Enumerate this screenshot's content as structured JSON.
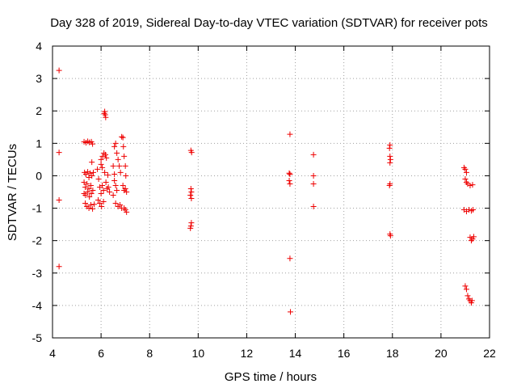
{
  "chart_data": {
    "type": "scatter",
    "title": "Day 328 of 2019, Sidereal Day-to-day VTEC variation (SDTVAR) for receiver pots",
    "xlabel": "GPS time / hours",
    "ylabel": "SDTVAR / TECUs",
    "xlim": [
      4,
      22
    ],
    "ylim": [
      -5,
      4
    ],
    "xticks": [
      4,
      6,
      8,
      10,
      12,
      14,
      16,
      18,
      20,
      22
    ],
    "yticks": [
      -5,
      -4,
      -3,
      -2,
      -1,
      0,
      1,
      2,
      3,
      4
    ],
    "grid": true,
    "marker": "+",
    "color": "#ee0000",
    "series": [
      {
        "name": "pots",
        "points": [
          [
            4.27,
            3.25
          ],
          [
            4.27,
            0.72
          ],
          [
            4.27,
            -0.75
          ],
          [
            4.27,
            -2.8
          ],
          [
            6.15,
            1.98
          ],
          [
            6.17,
            1.88
          ],
          [
            6.19,
            1.8
          ],
          [
            6.13,
            1.92
          ],
          [
            5.3,
            1.05
          ],
          [
            5.38,
            1.02
          ],
          [
            5.45,
            1.06
          ],
          [
            5.52,
            1.03
          ],
          [
            5.6,
            1.05
          ],
          [
            5.65,
            0.98
          ],
          [
            5.32,
            0.1
          ],
          [
            5.38,
            0.05
          ],
          [
            5.45,
            0.12
          ],
          [
            5.5,
            -0.05
          ],
          [
            5.55,
            0.08
          ],
          [
            5.62,
            0.0
          ],
          [
            5.68,
            0.1
          ],
          [
            5.3,
            -0.2
          ],
          [
            5.35,
            -0.35
          ],
          [
            5.42,
            -0.25
          ],
          [
            5.5,
            -0.4
          ],
          [
            5.58,
            -0.3
          ],
          [
            5.66,
            -0.45
          ],
          [
            5.3,
            -0.55
          ],
          [
            5.36,
            -0.6
          ],
          [
            5.44,
            -0.5
          ],
          [
            5.52,
            -0.65
          ],
          [
            5.6,
            -0.55
          ],
          [
            5.35,
            -0.85
          ],
          [
            5.42,
            -0.95
          ],
          [
            5.5,
            -1.0
          ],
          [
            5.58,
            -0.9
          ],
          [
            5.65,
            -1.02
          ],
          [
            5.72,
            -0.88
          ],
          [
            5.62,
            0.42
          ],
          [
            5.85,
            0.2
          ],
          [
            5.9,
            -0.1
          ],
          [
            5.95,
            -0.35
          ],
          [
            6.0,
            -0.55
          ],
          [
            6.05,
            -0.3
          ],
          [
            6.1,
            -0.45
          ],
          [
            5.88,
            -0.75
          ],
          [
            5.95,
            -0.85
          ],
          [
            6.02,
            -0.95
          ],
          [
            6.1,
            -0.8
          ],
          [
            6.0,
            0.5
          ],
          [
            6.06,
            0.6
          ],
          [
            6.12,
            0.7
          ],
          [
            6.18,
            0.65
          ],
          [
            6.22,
            0.55
          ],
          [
            6.0,
            0.35
          ],
          [
            6.05,
            0.25
          ],
          [
            6.15,
            0.1
          ],
          [
            6.2,
            -0.2
          ],
          [
            6.25,
            -0.4
          ],
          [
            6.3,
            -0.35
          ],
          [
            6.28,
            0.02
          ],
          [
            6.35,
            -0.5
          ],
          [
            6.5,
            0.3
          ],
          [
            6.55,
            0.05
          ],
          [
            6.55,
            -0.15
          ],
          [
            6.6,
            -0.3
          ],
          [
            6.65,
            -0.45
          ],
          [
            6.5,
            -0.6
          ],
          [
            6.55,
            0.9
          ],
          [
            6.6,
            1.0
          ],
          [
            6.65,
            0.7
          ],
          [
            6.7,
            0.5
          ],
          [
            6.75,
            0.3
          ],
          [
            6.8,
            0.1
          ],
          [
            6.6,
            -0.85
          ],
          [
            6.7,
            -0.95
          ],
          [
            6.78,
            -0.9
          ],
          [
            6.85,
            -1.0
          ],
          [
            6.85,
            1.2
          ],
          [
            6.9,
            1.18
          ],
          [
            6.92,
            0.9
          ],
          [
            6.95,
            0.6
          ],
          [
            7.0,
            0.3
          ],
          [
            7.02,
            0.0
          ],
          [
            6.9,
            -0.3
          ],
          [
            6.95,
            -0.45
          ],
          [
            7.0,
            -0.4
          ],
          [
            7.05,
            -0.5
          ],
          [
            6.95,
            -1.0
          ],
          [
            7.0,
            -1.05
          ],
          [
            7.05,
            -1.12
          ],
          [
            9.7,
            0.78
          ],
          [
            9.73,
            0.72
          ],
          [
            9.7,
            -0.4
          ],
          [
            9.72,
            -0.5
          ],
          [
            9.68,
            -0.6
          ],
          [
            9.72,
            -0.7
          ],
          [
            9.72,
            -1.45
          ],
          [
            9.7,
            -1.55
          ],
          [
            9.68,
            -1.62
          ],
          [
            13.78,
            1.28
          ],
          [
            13.75,
            0.08
          ],
          [
            13.78,
            0.05
          ],
          [
            13.75,
            -0.15
          ],
          [
            13.78,
            -0.25
          ],
          [
            13.78,
            -2.55
          ],
          [
            13.8,
            -4.2
          ],
          [
            14.75,
            0.65
          ],
          [
            14.75,
            0.0
          ],
          [
            14.75,
            -0.25
          ],
          [
            14.75,
            -0.95
          ],
          [
            17.9,
            0.95
          ],
          [
            17.88,
            0.85
          ],
          [
            17.9,
            0.6
          ],
          [
            17.92,
            0.5
          ],
          [
            17.9,
            0.4
          ],
          [
            17.9,
            -0.25
          ],
          [
            17.88,
            -0.3
          ],
          [
            17.9,
            -1.8
          ],
          [
            17.92,
            -1.85
          ],
          [
            20.95,
            0.25
          ],
          [
            21.0,
            0.2
          ],
          [
            21.05,
            0.1
          ],
          [
            21.0,
            -0.1
          ],
          [
            21.05,
            -0.2
          ],
          [
            21.1,
            -0.25
          ],
          [
            21.2,
            -0.3
          ],
          [
            21.3,
            -0.28
          ],
          [
            20.95,
            -1.05
          ],
          [
            21.05,
            -1.1
          ],
          [
            21.15,
            -1.05
          ],
          [
            21.25,
            -1.08
          ],
          [
            21.32,
            -1.05
          ],
          [
            21.2,
            -1.9
          ],
          [
            21.25,
            -2.0
          ],
          [
            21.3,
            -1.95
          ],
          [
            21.35,
            -1.88
          ],
          [
            21.0,
            -3.4
          ],
          [
            21.05,
            -3.5
          ],
          [
            21.1,
            -3.7
          ],
          [
            21.15,
            -3.8
          ],
          [
            21.2,
            -3.85
          ],
          [
            21.25,
            -3.92
          ],
          [
            21.28,
            -3.85
          ]
        ]
      }
    ]
  }
}
